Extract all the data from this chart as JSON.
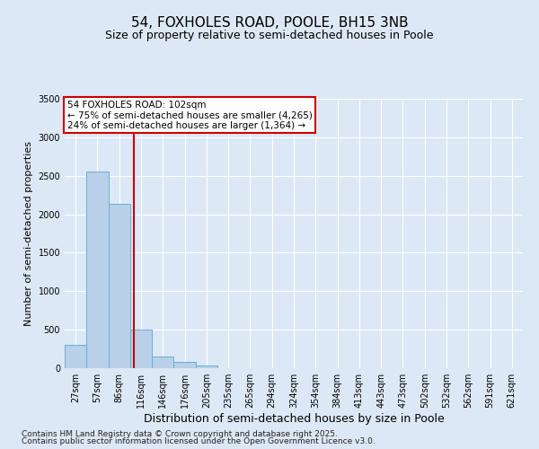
{
  "title": "54, FOXHOLES ROAD, POOLE, BH15 3NB",
  "subtitle": "Size of property relative to semi-detached houses in Poole",
  "xlabel": "Distribution of semi-detached houses by size in Poole",
  "ylabel": "Number of semi-detached properties",
  "categories": [
    "27sqm",
    "57sqm",
    "86sqm",
    "116sqm",
    "146sqm",
    "176sqm",
    "205sqm",
    "235sqm",
    "265sqm",
    "294sqm",
    "324sqm",
    "354sqm",
    "384sqm",
    "413sqm",
    "443sqm",
    "473sqm",
    "502sqm",
    "532sqm",
    "562sqm",
    "591sqm",
    "621sqm"
  ],
  "values": [
    300,
    2550,
    2130,
    500,
    150,
    80,
    30,
    0,
    0,
    0,
    0,
    0,
    0,
    0,
    0,
    0,
    0,
    0,
    0,
    0,
    0
  ],
  "bar_color": "#b8d0e8",
  "bar_edge_color": "#6aaed6",
  "vline_x": 2.67,
  "vline_color": "#cc0000",
  "annotation_text": "54 FOXHOLES ROAD: 102sqm\n← 75% of semi-detached houses are smaller (4,265)\n24% of semi-detached houses are larger (1,364) →",
  "annotation_box_color": "#ffffff",
  "annotation_box_edge": "#cc0000",
  "ylim": [
    0,
    3500
  ],
  "yticks": [
    0,
    500,
    1000,
    1500,
    2000,
    2500,
    3000,
    3500
  ],
  "bg_color": "#dce8f5",
  "plot_bg_color": "#dce8f5",
  "footer_line1": "Contains HM Land Registry data © Crown copyright and database right 2025.",
  "footer_line2": "Contains public sector information licensed under the Open Government Licence v3.0.",
  "title_fontsize": 11,
  "subtitle_fontsize": 9,
  "xlabel_fontsize": 9,
  "ylabel_fontsize": 8,
  "tick_fontsize": 7,
  "annotation_fontsize": 7.5,
  "footer_fontsize": 6.5
}
